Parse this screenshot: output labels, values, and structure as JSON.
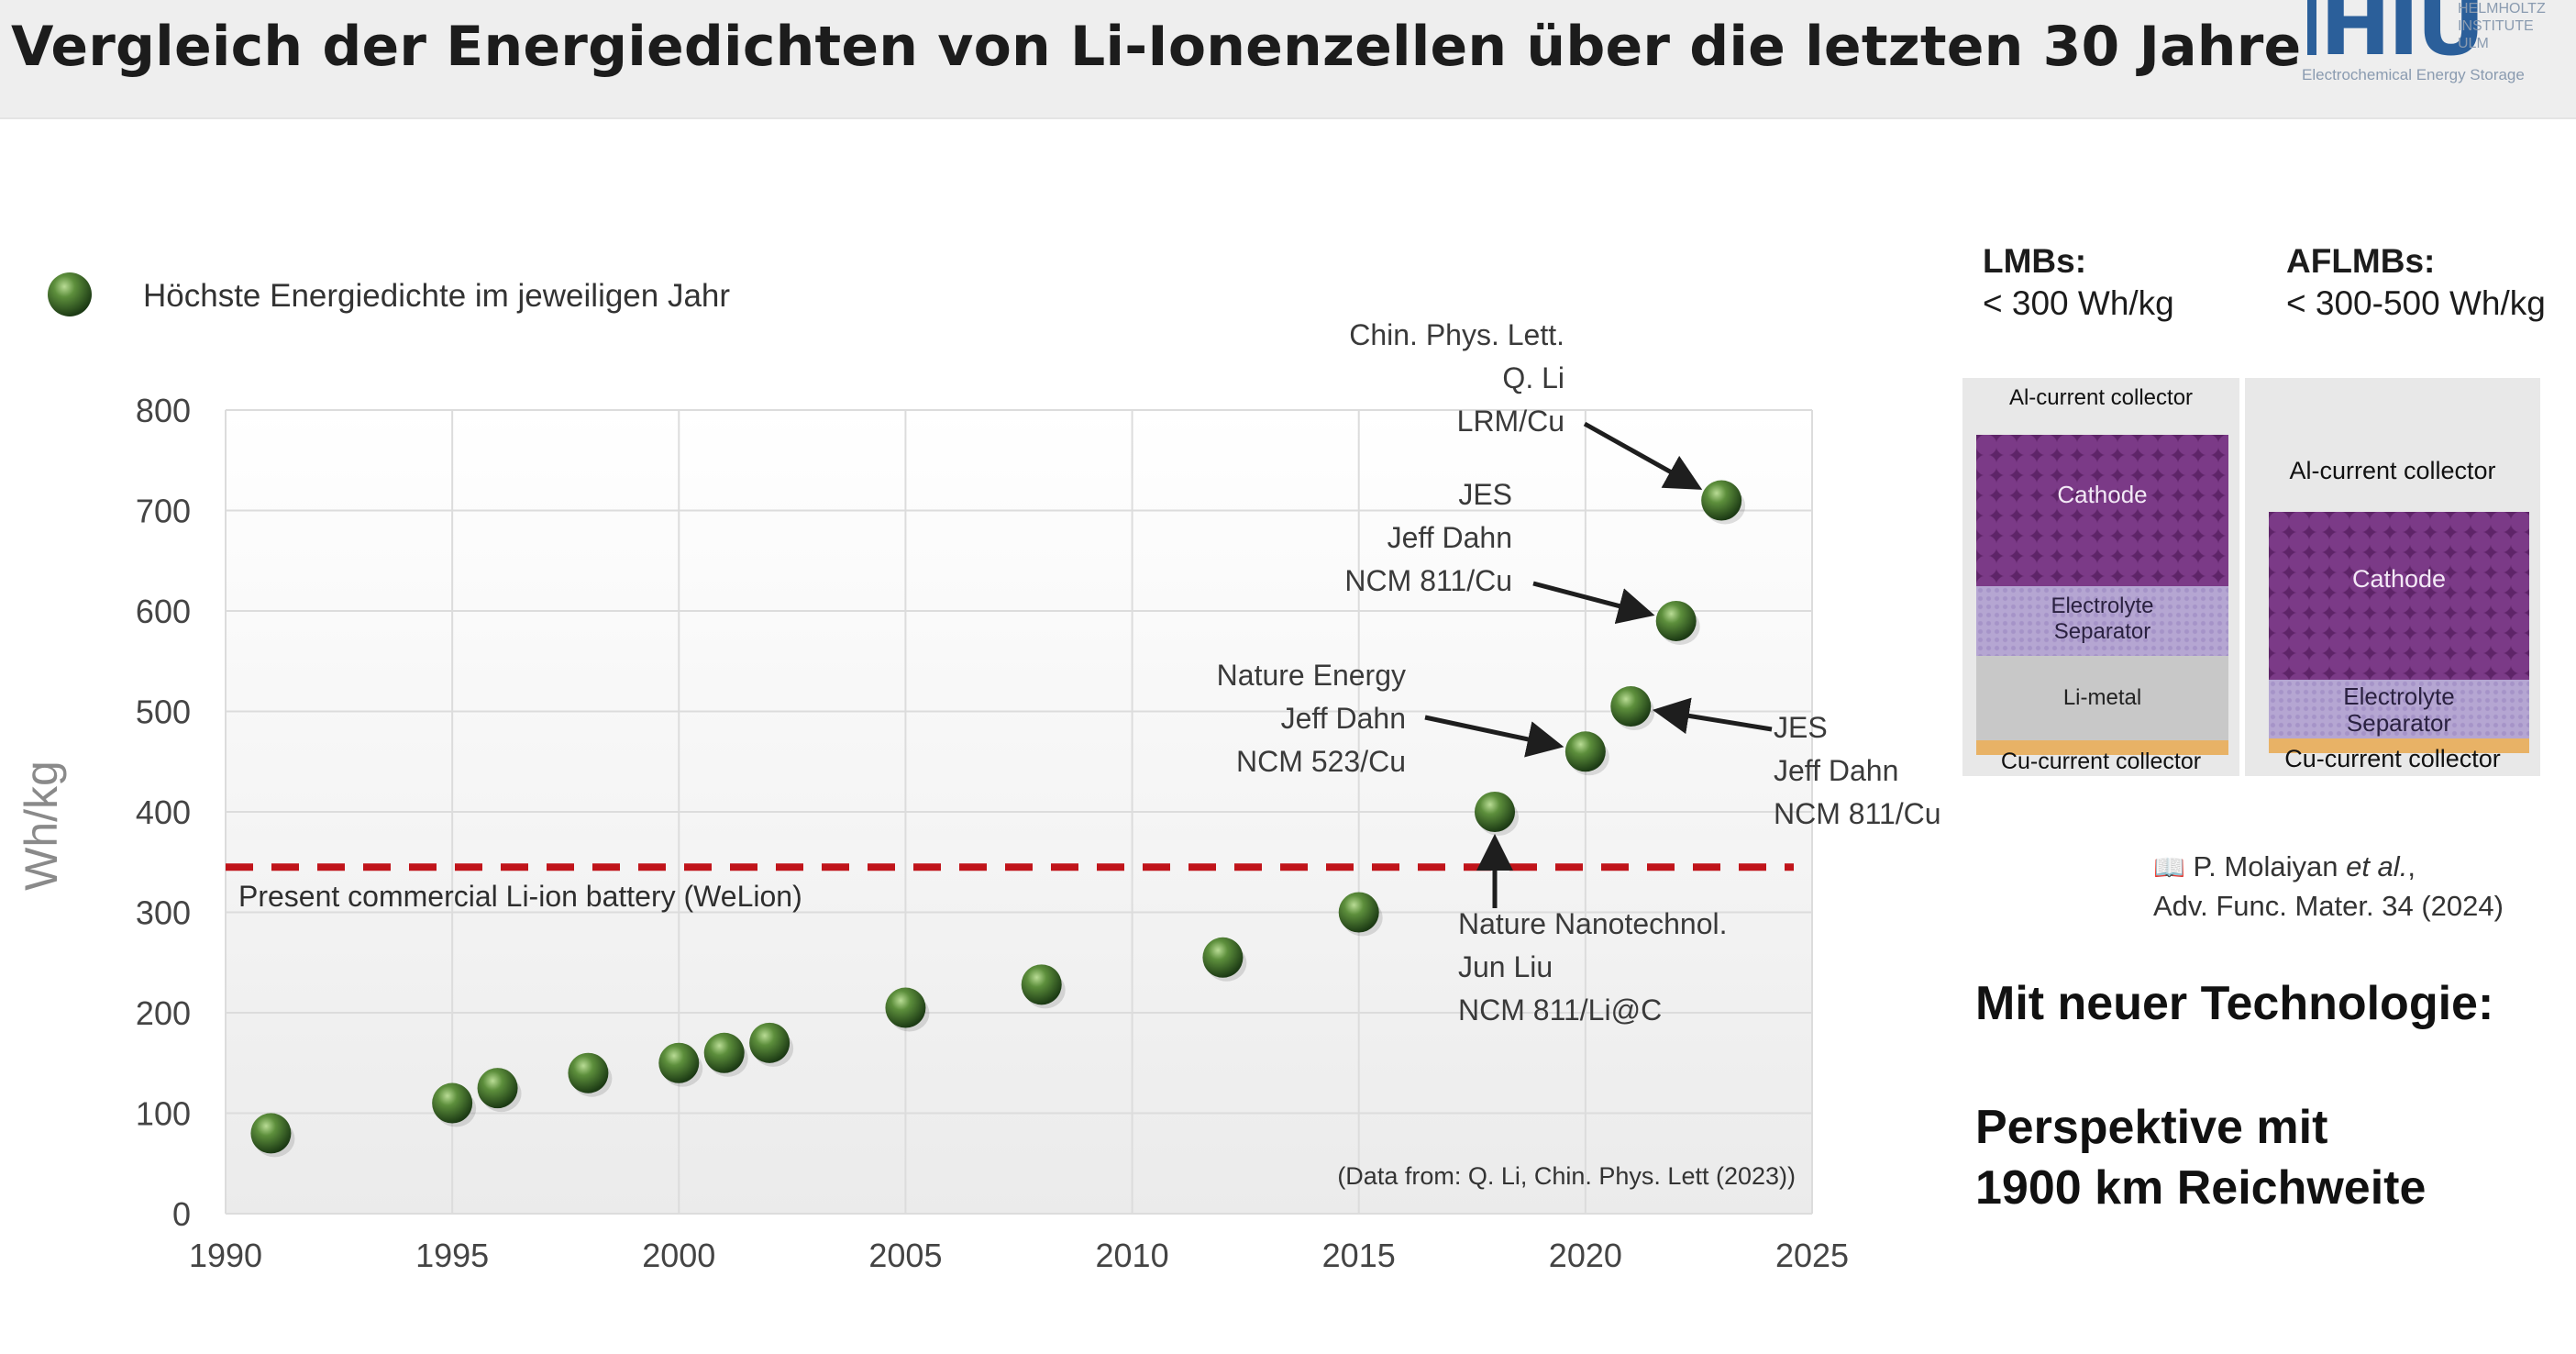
{
  "header": {
    "title": "Vergleich der Energiedichten von Li-Ionenzellen über die letzten 30 Jahre",
    "logo_text": "HIU",
    "logo_institute": [
      "HELMHOLTZ",
      "INSTITUTE",
      "ULM"
    ],
    "logo_subtitle": "Electrochemical Energy Storage"
  },
  "chart_data": {
    "type": "scatter",
    "legend": {
      "label": "Höchste Energiedichte im jeweiligen Jahr",
      "position": "top-left"
    },
    "ylabel": "Wh/kg",
    "xlabel": "",
    "xlim": [
      1990,
      2025
    ],
    "ylim": [
      0,
      800
    ],
    "x_ticks": [
      1990,
      1995,
      2000,
      2005,
      2010,
      2015,
      2020,
      2025
    ],
    "y_ticks": [
      0,
      100,
      200,
      300,
      400,
      500,
      600,
      700,
      800
    ],
    "grid": true,
    "series": [
      {
        "name": "Höchste Energiedichte im jeweiligen Jahr",
        "color": "#3d6b2a",
        "points": [
          {
            "x": 1991,
            "y": 80
          },
          {
            "x": 1995,
            "y": 110
          },
          {
            "x": 1996,
            "y": 125
          },
          {
            "x": 1998,
            "y": 140
          },
          {
            "x": 2000,
            "y": 150
          },
          {
            "x": 2001,
            "y": 160
          },
          {
            "x": 2002,
            "y": 170
          },
          {
            "x": 2005,
            "y": 205
          },
          {
            "x": 2008,
            "y": 228
          },
          {
            "x": 2012,
            "y": 255
          },
          {
            "x": 2015,
            "y": 300
          },
          {
            "x": 2018,
            "y": 400
          },
          {
            "x": 2020,
            "y": 460
          },
          {
            "x": 2021,
            "y": 505
          },
          {
            "x": 2022,
            "y": 590
          },
          {
            "x": 2023,
            "y": 710
          }
        ]
      }
    ],
    "reference_line": {
      "y": 345,
      "label": "Present commercial Li-ion battery (WeLion)",
      "color": "#c0141a"
    },
    "annotations": [
      {
        "lines": [
          "Chin. Phys. Lett.",
          "Q. Li",
          "LRM/Cu"
        ],
        "target": {
          "x": 2023,
          "y": 710
        }
      },
      {
        "lines": [
          "JES",
          "Jeff Dahn",
          "NCM 811/Cu"
        ],
        "target": {
          "x": 2022,
          "y": 590
        }
      },
      {
        "lines": [
          "Nature Energy",
          "Jeff Dahn",
          "NCM 523/Cu"
        ],
        "target": {
          "x": 2020,
          "y": 460
        }
      },
      {
        "lines": [
          "JES",
          "Jeff Dahn",
          "NCM 811/Cu"
        ],
        "target": {
          "x": 2021,
          "y": 505
        }
      },
      {
        "lines": [
          "Nature Nanotechnol.",
          "Jun Liu",
          "NCM 811/Li@C"
        ],
        "target": {
          "x": 2018,
          "y": 400
        }
      }
    ],
    "source_note": "(Data from: Q. Li, Chin. Phys. Lett (2023))"
  },
  "panel": {
    "lmb_title": "LMBs:",
    "lmb_value": "< 300 Wh/kg",
    "aflmb_title": "AFLMBs:",
    "aflmb_value": "< 300-500 Wh/kg",
    "lmb_layers": {
      "al": "Al-current collector",
      "cathode": "Cathode",
      "electrolyte": "Electrolyte\nSeparator",
      "limetal": "Li-metal",
      "cu": "Cu-current collector"
    },
    "aflmb_layers": {
      "al": "Al-current collector",
      "cathode": "Cathode",
      "electrolyte": "Electrolyte\nSeparator",
      "cu": "Cu-current collector"
    },
    "citation_line1": "P. Molaiyan",
    "citation_etal": "et al.",
    "citation_line1_end": ",",
    "citation_line2": "Adv. Func. Mater. 34 (2024)",
    "book_icon": "book-icon",
    "headline": "Mit neuer Technologie:",
    "perspective_line1": "Perspektive mit",
    "perspective_line2": "1900 km Reichweite"
  },
  "colors": {
    "point": "#3d6b2a",
    "reference": "#c0141a",
    "grid": "#dcdcdc",
    "cathode": "#5e2468",
    "electrolyte": "#b5a6d2",
    "cu": "#e8b266",
    "logo": "#2b5f9a"
  }
}
